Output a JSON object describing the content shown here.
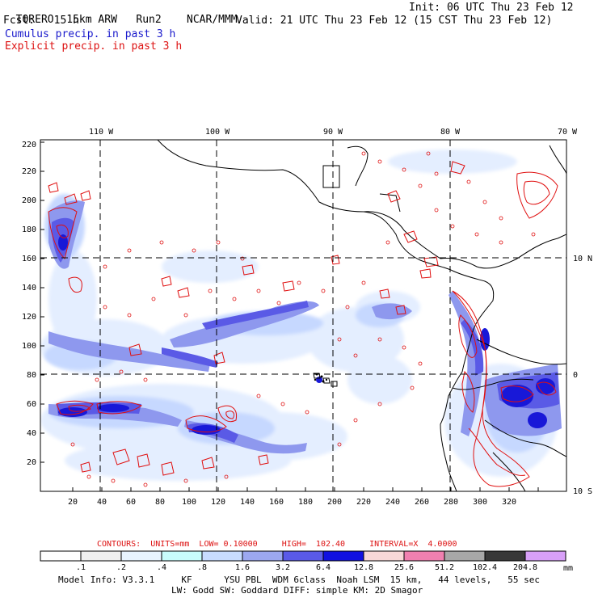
{
  "header": {
    "model": "TORERO",
    "resolution": "15km ARW",
    "run": "Run2",
    "org": "NCAR/MMM",
    "init": "Init: 06 UTC Thu 23 Feb 12",
    "fcst_label": "Fcst:",
    "fcst_value": "15 h",
    "valid": "Valid: 21 UTC Thu 23 Feb 12 (15 CST Thu 23 Feb 12)",
    "field1": "Cumulus precip. in past 3 h",
    "field2": "Explicit precip. in past 3 h"
  },
  "map": {
    "lon_labels": [
      "110 W",
      "100 W",
      "90 W",
      "80 W",
      "70 W"
    ],
    "lat_labels": [
      "10 N",
      "0",
      "10 S"
    ],
    "x_ticks": [
      "20",
      "40",
      "60",
      "80",
      "100",
      "120",
      "140",
      "160",
      "180",
      "200",
      "220",
      "240",
      "260",
      "280",
      "300",
      "320"
    ],
    "y_ticks": [
      "20",
      "40",
      "60",
      "80",
      "100",
      "120",
      "140",
      "160",
      "180",
      "200",
      "220"
    ],
    "precip_colors": {
      "very_light": "#e6f0ff",
      "light": "#c8dcff",
      "medium": "#8f9cf0",
      "heavy": "#5a5ae8",
      "very_heavy": "#1a1ad8",
      "contour": "#e01010"
    }
  },
  "contour_info": {
    "text": "CONTOURS:  UNITS=mm  LOW= 0.10000     HIGH=  102.40     INTERVAL=X  4.0000"
  },
  "colorbar": {
    "labels": [
      ".1",
      ".2",
      ".4",
      ".8",
      "1.6",
      "3.2",
      "6.4",
      "12.8",
      "25.6",
      "51.2",
      "102.4",
      "204.8"
    ],
    "unit": "mm",
    "colors": [
      "#ffffff",
      "#f0f0f0",
      "#e8f4ff",
      "#c8fcfc",
      "#c8dcff",
      "#9ca8f0",
      "#5a5ae8",
      "#1010e0",
      "#f8d8d8",
      "#f080b0",
      "#a8a8a8",
      "#383838",
      "#d8a0f8"
    ]
  },
  "footer": {
    "line1": "Model Info: V3.3.1     KF      YSU PBL  WDM 6class  Noah LSM  15 km,   44 levels,   55 sec",
    "line2": "LW: Godd SW: Goddard DIFF: simple KM: 2D Smagor"
  }
}
